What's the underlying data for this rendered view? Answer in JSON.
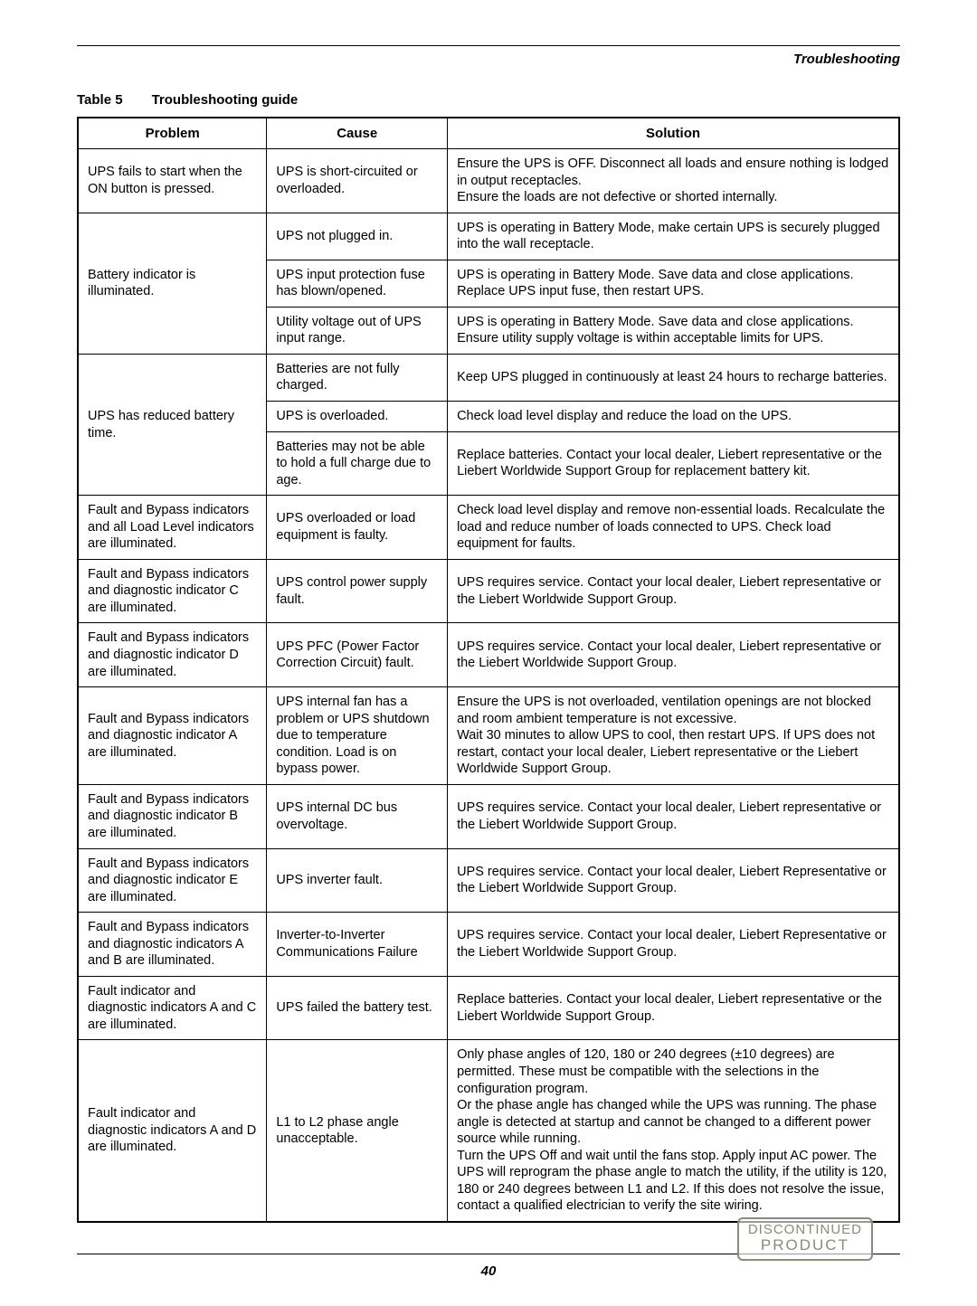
{
  "section_header": "Troubleshooting",
  "caption_prefix": "Table 5",
  "caption_title": "Troubleshooting guide",
  "columns": [
    "Problem",
    "Cause",
    "Solution"
  ],
  "rows": [
    {
      "problem": "UPS fails to start when the ON button is pressed.",
      "problem_rowspan": 1,
      "cause": "UPS is short-circuited or overloaded.",
      "solution": "Ensure the UPS is OFF. Disconnect all loads and ensure nothing is lodged in output receptacles.\nEnsure the loads are not defective or shorted internally."
    },
    {
      "problem": "Battery indicator is illuminated.",
      "problem_rowspan": 3,
      "cause": "UPS not plugged in.",
      "solution": "UPS is operating in Battery Mode, make certain UPS is securely plugged into the wall receptacle."
    },
    {
      "cause": "UPS input protection fuse has blown/opened.",
      "solution": "UPS is operating in Battery Mode. Save data and close applications. Replace UPS input fuse, then restart UPS."
    },
    {
      "cause": "Utility voltage out of UPS input range.",
      "solution": "UPS is operating in Battery Mode. Save data and close applications. Ensure utility supply voltage is within acceptable limits for UPS."
    },
    {
      "problem": "UPS has reduced battery time.",
      "problem_rowspan": 3,
      "cause": "Batteries are not fully charged.",
      "solution": "Keep UPS plugged in continuously at least 24 hours to recharge batteries."
    },
    {
      "cause": "UPS is overloaded.",
      "solution": "Check load level display and reduce the load on the UPS."
    },
    {
      "cause": "Batteries may not be able to hold a full charge due to age.",
      "solution": "Replace batteries. Contact your local dealer, Liebert representative or the Liebert Worldwide Support Group for replacement battery kit."
    },
    {
      "problem": "Fault and Bypass indicators and all Load Level indicators are illuminated.",
      "problem_rowspan": 1,
      "cause": "UPS overloaded or load equipment is faulty.",
      "solution": "Check load level display and remove non-essential loads. Recalculate the load and reduce number of loads connected to UPS. Check load equipment for faults."
    },
    {
      "problem": "Fault and Bypass indicators and diagnostic indicator C are illuminated.",
      "problem_rowspan": 1,
      "cause": "UPS control power supply fault.",
      "solution": "UPS requires service. Contact your local dealer, Liebert representative or the Liebert Worldwide Support Group."
    },
    {
      "problem": "Fault and Bypass indicators and diagnostic indicator D are illuminated.",
      "problem_rowspan": 1,
      "cause": "UPS PFC (Power Factor Correction Circuit) fault.",
      "solution": "UPS requires service. Contact your local dealer, Liebert representative or the Liebert Worldwide Support Group."
    },
    {
      "problem": "Fault and Bypass indicators and diagnostic indicator A are illuminated.",
      "problem_rowspan": 1,
      "cause": "UPS internal fan has a problem or UPS shutdown due to temperature condition. Load is on bypass power.",
      "solution": "Ensure the UPS is not overloaded, ventilation openings are not blocked and room ambient temperature is not excessive.\nWait 30 minutes to allow UPS to cool, then restart UPS. If UPS does not restart, contact your local dealer, Liebert representative or the Liebert Worldwide Support Group."
    },
    {
      "problem": "Fault and Bypass indicators and diagnostic indicator B are illuminated.",
      "problem_rowspan": 1,
      "cause": "UPS internal DC bus overvoltage.",
      "solution": "UPS requires service. Contact your local dealer, Liebert representative or the Liebert Worldwide Support Group."
    },
    {
      "problem": "Fault and Bypass indicators and diagnostic indicator E are illuminated.",
      "problem_rowspan": 1,
      "cause": "UPS inverter fault.",
      "solution": "UPS requires service. Contact your local dealer, Liebert Representative or the Liebert Worldwide Support Group."
    },
    {
      "problem": "Fault and Bypass indicators and diagnostic indicators A and B are illuminated.",
      "problem_rowspan": 1,
      "cause": "Inverter-to-Inverter Communications Failure",
      "solution": "UPS requires service. Contact your local dealer, Liebert Representative or the Liebert Worldwide Support Group."
    },
    {
      "problem": "Fault indicator and diagnostic indicators A and C are illuminated.",
      "problem_rowspan": 1,
      "cause": "UPS failed the battery test.",
      "solution": "Replace batteries. Contact your local dealer, Liebert representative or the Liebert Worldwide Support Group."
    },
    {
      "problem": "Fault indicator and diagnostic indicators A and D are illuminated.",
      "problem_rowspan": 1,
      "cause": "L1 to L2 phase angle unacceptable.",
      "solution": "Only phase angles of 120, 180 or 240 degrees (±10 degrees) are permitted. These must be compatible with the selections in the configuration program.\nOr the phase angle has changed while the UPS was running. The phase angle is detected at startup and cannot be changed to a different power source while running.\nTurn the UPS Off and wait until the fans stop. Apply input AC power. The UPS will reprogram the phase angle to match the utility, if the utility is 120, 180 or 240 degrees between L1 and L2. If this does not resolve the issue, contact a qualified electrician to verify the site wiring."
    }
  ],
  "page_number": "40",
  "stamp_line1": "DISCONTINUED",
  "stamp_line2": "PRODUCT"
}
